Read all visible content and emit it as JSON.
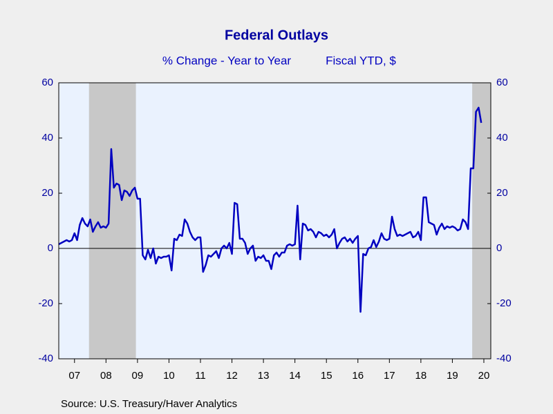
{
  "chart_data": {
    "type": "line",
    "title": "Federal Outlays",
    "subtitle": [
      "% Change - Year to Year",
      "Fiscal YTD, $"
    ],
    "source": "Source:  U.S. Treasury/Haver Analytics",
    "xlim": [
      2007,
      2020.72
    ],
    "ylim": [
      -40,
      60
    ],
    "yticks": [
      60,
      40,
      20,
      0,
      -20,
      -40
    ],
    "y2lim": [
      -40,
      60
    ],
    "y2ticks": [
      60,
      40,
      20,
      0,
      -20,
      -40
    ],
    "xticks": [
      {
        "value": 2007.5,
        "label": "07"
      },
      {
        "value": 2008.5,
        "label": "08"
      },
      {
        "value": 2009.5,
        "label": "09"
      },
      {
        "value": 2010.5,
        "label": "10"
      },
      {
        "value": 2011.5,
        "label": "11"
      },
      {
        "value": 2012.5,
        "label": "12"
      },
      {
        "value": 2013.5,
        "label": "13"
      },
      {
        "value": 2014.5,
        "label": "14"
      },
      {
        "value": 2015.5,
        "label": "15"
      },
      {
        "value": 2016.5,
        "label": "16"
      },
      {
        "value": 2017.5,
        "label": "17"
      },
      {
        "value": 2018.5,
        "label": "18"
      },
      {
        "value": 2019.5,
        "label": "19"
      },
      {
        "value": 2020.5,
        "label": "20"
      }
    ],
    "shading": [
      [
        2007.96,
        2009.45
      ],
      [
        2020.13,
        2020.72
      ]
    ],
    "shading_color": "#c8c8c8",
    "plot_color": "#eaf2fe",
    "x": [
      2007.0,
      2007.083,
      2007.167,
      2007.25,
      2007.333,
      2007.417,
      2007.5,
      2007.583,
      2007.667,
      2007.75,
      2007.833,
      2007.917,
      2008.0,
      2008.083,
      2008.167,
      2008.25,
      2008.333,
      2008.417,
      2008.5,
      2008.583,
      2008.667,
      2008.75,
      2008.833,
      2008.917,
      2009.0,
      2009.083,
      2009.167,
      2009.25,
      2009.333,
      2009.417,
      2009.5,
      2009.583,
      2009.667,
      2009.75,
      2009.833,
      2009.917,
      2010.0,
      2010.083,
      2010.167,
      2010.25,
      2010.333,
      2010.417,
      2010.5,
      2010.583,
      2010.667,
      2010.75,
      2010.833,
      2010.917,
      2011.0,
      2011.083,
      2011.167,
      2011.25,
      2011.333,
      2011.417,
      2011.5,
      2011.583,
      2011.667,
      2011.75,
      2011.833,
      2011.917,
      2012.0,
      2012.083,
      2012.167,
      2012.25,
      2012.333,
      2012.417,
      2012.5,
      2012.583,
      2012.667,
      2012.75,
      2012.833,
      2012.917,
      2013.0,
      2013.083,
      2013.167,
      2013.25,
      2013.333,
      2013.417,
      2013.5,
      2013.583,
      2013.667,
      2013.75,
      2013.833,
      2013.917,
      2014.0,
      2014.083,
      2014.167,
      2014.25,
      2014.333,
      2014.417,
      2014.5,
      2014.583,
      2014.667,
      2014.75,
      2014.833,
      2014.917,
      2015.0,
      2015.083,
      2015.167,
      2015.25,
      2015.333,
      2015.417,
      2015.5,
      2015.583,
      2015.667,
      2015.75,
      2015.833,
      2015.917,
      2016.0,
      2016.083,
      2016.167,
      2016.25,
      2016.333,
      2016.417,
      2016.5,
      2016.583,
      2016.667,
      2016.75,
      2016.833,
      2016.917,
      2017.0,
      2017.083,
      2017.167,
      2017.25,
      2017.333,
      2017.417,
      2017.5,
      2017.583,
      2017.667,
      2017.75,
      2017.833,
      2017.917,
      2018.0,
      2018.083,
      2018.167,
      2018.25,
      2018.333,
      2018.417,
      2018.5,
      2018.583,
      2018.667,
      2018.75,
      2018.833,
      2018.917,
      2019.0,
      2019.083,
      2019.167,
      2019.25,
      2019.333,
      2019.417,
      2019.5,
      2019.583,
      2019.667,
      2019.75,
      2019.833,
      2019.917,
      2020.0,
      2020.083,
      2020.167,
      2020.25,
      2020.333,
      2020.417
    ],
    "series": [
      {
        "name": "Federal Outlays",
        "color": "#0000c0",
        "values": [
          1.5,
          2,
          2.5,
          3,
          2.5,
          3,
          5.5,
          3,
          8.5,
          11,
          9,
          8,
          10.5,
          6,
          8,
          9.5,
          7.5,
          8,
          7.5,
          9,
          36,
          22,
          23.5,
          23,
          17.5,
          21,
          20.5,
          19,
          21,
          22,
          18,
          18,
          -2.5,
          -4,
          -0.5,
          -3.5,
          0,
          -5.5,
          -3,
          -3.5,
          -3,
          -3,
          -2.5,
          -8,
          3.5,
          3,
          5,
          4.5,
          10.5,
          9,
          6,
          4,
          3,
          4,
          4,
          -8.5,
          -6,
          -2.5,
          -3,
          -2,
          -1,
          -3.5,
          0,
          1,
          0,
          2,
          -2,
          16.5,
          16,
          3.5,
          3.5,
          2,
          -2,
          0,
          1,
          -4.5,
          -3,
          -3.5,
          -2.5,
          -4.5,
          -4.5,
          -7.5,
          -2.5,
          -1.5,
          -3,
          -1.5,
          -1.5,
          1,
          1.5,
          1,
          1.5,
          15.5,
          -4,
          9,
          8.5,
          6.5,
          7,
          6,
          4,
          6,
          5.5,
          4.5,
          5,
          4,
          5,
          7,
          0,
          2,
          3.5,
          4,
          2.5,
          3.5,
          2,
          3.5,
          4.5,
          -23,
          -2,
          -2.5,
          0,
          0.5,
          3,
          0.5,
          2.5,
          5.5,
          3.5,
          3,
          3.5,
          11.5,
          7,
          4.5,
          5,
          4.5,
          5,
          5.5,
          6,
          4,
          4.5,
          6,
          3,
          18.5,
          18.5,
          9.5,
          9,
          8.5,
          5,
          7.5,
          9,
          7,
          8,
          7.5,
          8,
          7.5,
          6.5,
          7,
          10.5,
          9.5,
          7,
          29,
          29,
          49.5,
          51,
          45.5
        ]
      }
    ]
  }
}
